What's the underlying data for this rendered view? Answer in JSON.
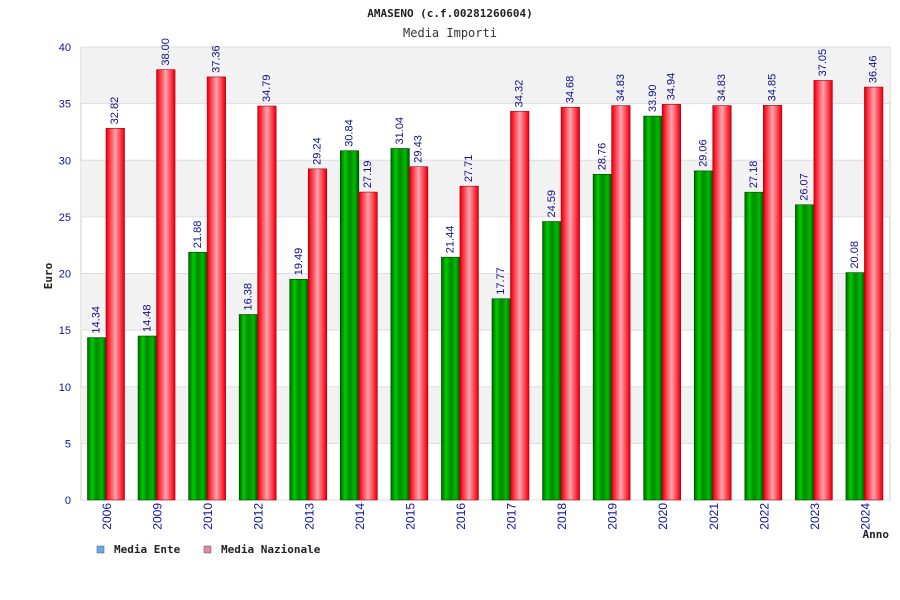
{
  "chart_data": {
    "type": "bar",
    "title": "AMASENO (c.f.00281260604)",
    "subtitle": "Media Importi",
    "xlabel": "Anno",
    "ylabel": "Euro",
    "ylim": [
      0,
      40
    ],
    "yticks": [
      "0",
      "5",
      "10",
      "15",
      "20",
      "25",
      "30",
      "35",
      "40"
    ],
    "categories": [
      "2006",
      "2009",
      "2010",
      "2012",
      "2013",
      "2014",
      "2015",
      "2016",
      "2017",
      "2018",
      "2019",
      "2020",
      "2021",
      "2022",
      "2023",
      "2024"
    ],
    "series": [
      {
        "name": "Media Ente",
        "color": "#00bb00",
        "values": [
          14.34,
          14.48,
          21.88,
          16.38,
          19.49,
          30.84,
          31.04,
          21.44,
          17.77,
          24.59,
          28.76,
          33.9,
          29.06,
          27.18,
          26.07,
          20.08
        ],
        "labels": [
          "14.34",
          "14.48",
          "21.88",
          "16.38",
          "19.49",
          "30.84",
          "31.04",
          "21.44",
          "17.77",
          "24.59",
          "28.76",
          "33.90",
          "29.06",
          "27.18",
          "26.07",
          "20.08"
        ]
      },
      {
        "name": "Media Nazionale",
        "color": "#ee1122",
        "values": [
          32.82,
          38.0,
          37.36,
          34.79,
          29.24,
          27.19,
          29.43,
          27.71,
          34.32,
          34.68,
          34.83,
          34.94,
          34.83,
          34.85,
          37.05,
          36.46
        ],
        "labels": [
          "32.82",
          "38.00",
          "37.36",
          "34.79",
          "29.24",
          "27.19",
          "29.43",
          "27.71",
          "34.32",
          "34.68",
          "34.83",
          "34.94",
          "34.83",
          "34.85",
          "37.05",
          "36.46"
        ]
      }
    ],
    "legend": [
      {
        "label": "Media Ente",
        "color": "#66aaee"
      },
      {
        "label": "Media Nazionale",
        "color": "#dd88aa"
      }
    ],
    "grid": true,
    "legend_position": "bottom-left"
  }
}
